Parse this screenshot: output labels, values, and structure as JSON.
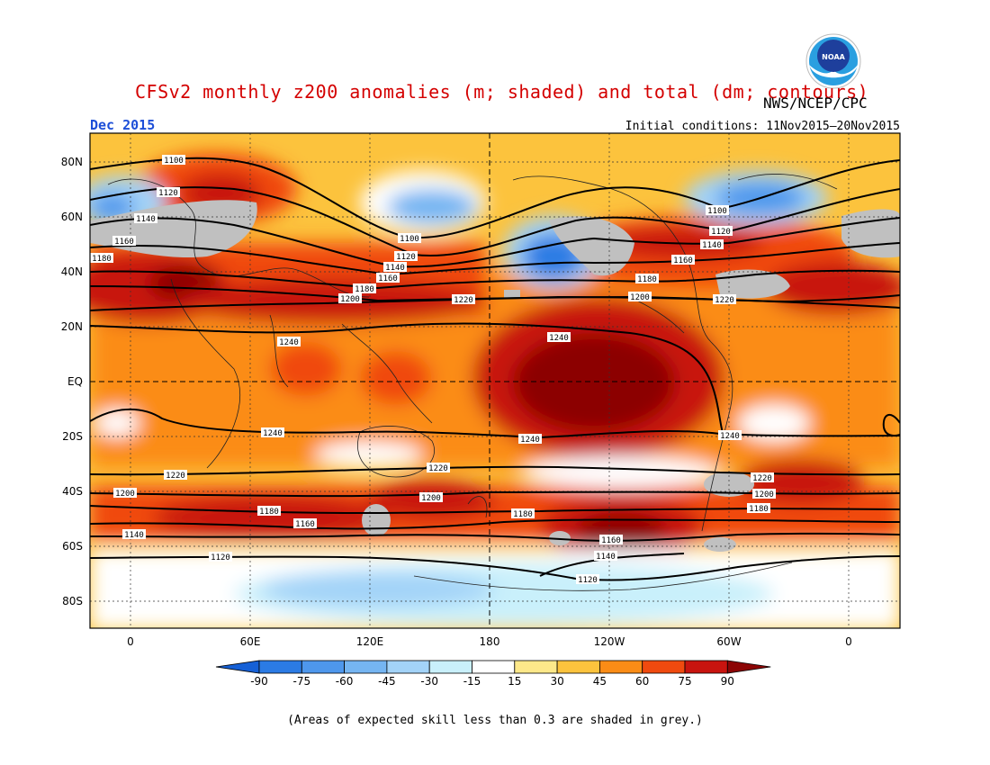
{
  "header": {
    "title": "CFSv2 monthly z200 anomalies (m; shaded) and total (dm; contours)",
    "agency": "NWS/NCEP/CPC",
    "month": "Dec 2015",
    "initial_conditions": "Initial conditions: 11Nov2015–20Nov2015"
  },
  "logo": {
    "text": "NOAA"
  },
  "axes": {
    "lat_ticks": [
      "80N",
      "60N",
      "40N",
      "20N",
      "EQ",
      "20S",
      "40S",
      "60S",
      "80S"
    ],
    "lon_ticks": [
      "0",
      "60E",
      "120E",
      "180",
      "120W",
      "60W",
      "0"
    ]
  },
  "colorbar": {
    "values": [
      "-90",
      "-75",
      "-60",
      "-45",
      "-30",
      "-15",
      "15",
      "30",
      "45",
      "60",
      "75",
      "90"
    ],
    "colors": [
      "#1560d6",
      "#2b7be4",
      "#4e97ec",
      "#75b5f2",
      "#a3d3f8",
      "#c9f0fb",
      "#ffffff",
      "#fde88a",
      "#fcc33d",
      "#fb8c16",
      "#f04a0f",
      "#c8140f",
      "#8c0505"
    ]
  },
  "contour_labels": [
    "1100",
    "1120",
    "1140",
    "1160",
    "1180",
    "1200",
    "1220",
    "1240"
  ],
  "footnote": "(Areas of expected skill less than 0.3 are shaded in grey.)",
  "colors": {
    "title": "#d40000",
    "month": "#1d4fd8",
    "skill_grey": "#c0c0c0"
  }
}
